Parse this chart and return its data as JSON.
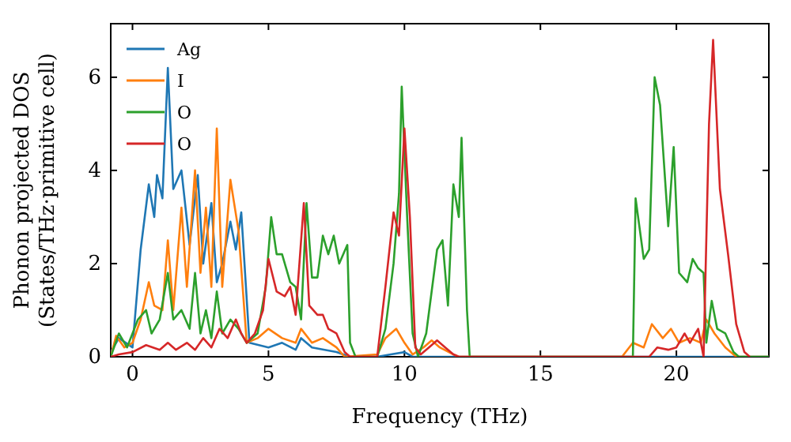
{
  "chart_data": {
    "type": "line",
    "xlabel": "Frequency (THz)",
    "ylabel": "Phonon projected DOS\n(States/THz·primitive cell)",
    "xlim": [
      -0.8,
      23.4
    ],
    "ylim": [
      0,
      7.15
    ],
    "xticks": [
      0,
      5,
      10,
      15,
      20
    ],
    "yticks": [
      0,
      2,
      4,
      6
    ],
    "grid": false,
    "legend": "top left",
    "marker": "none",
    "line_style": "solid",
    "series": [
      {
        "name": "Ag",
        "color": "#1f77b4",
        "x": [
          -0.8,
          -0.5,
          0,
          0.3,
          0.6,
          0.8,
          0.9,
          1.1,
          1.3,
          1.5,
          1.8,
          2.1,
          2.4,
          2.6,
          2.9,
          3.1,
          3.3,
          3.6,
          3.8,
          4.0,
          4.3,
          5,
          5.5,
          6,
          6.2,
          6.6,
          7.5,
          8,
          9,
          9.5,
          10,
          10.3,
          23.4
        ],
        "values": [
          0.1,
          0.4,
          0.2,
          2.3,
          3.7,
          3.0,
          3.9,
          3.4,
          6.2,
          3.6,
          4.0,
          2.4,
          3.9,
          2.0,
          3.3,
          1.6,
          2.0,
          2.9,
          2.3,
          3.1,
          0.3,
          0.2,
          0.3,
          0.15,
          0.4,
          0.2,
          0.1,
          0,
          0,
          0.05,
          0.1,
          0,
          0
        ]
      },
      {
        "name": "I",
        "color": "#ff7f0e",
        "x": [
          -0.8,
          -0.6,
          -0.3,
          0,
          0.3,
          0.6,
          0.8,
          1.1,
          1.3,
          1.5,
          1.8,
          2.0,
          2.3,
          2.5,
          2.7,
          2.9,
          3.1,
          3.3,
          3.6,
          3.9,
          4.2,
          4.6,
          5,
          5.5,
          6,
          6.2,
          6.6,
          7,
          7.5,
          7.8,
          9,
          9.3,
          9.7,
          10,
          10.3,
          10.7,
          11,
          11.3,
          11.8,
          12,
          18,
          18.4,
          18.8,
          19.1,
          19.5,
          19.8,
          20.1,
          20.5,
          20.9,
          21.1,
          21.4,
          21.8,
          22.2,
          23.4
        ],
        "values": [
          0,
          0.45,
          0.2,
          0.3,
          0.8,
          1.6,
          1.1,
          1.0,
          2.5,
          1.0,
          3.2,
          1.5,
          4.0,
          1.8,
          3.2,
          1.5,
          4.9,
          1.5,
          3.8,
          2.7,
          0.3,
          0.4,
          0.6,
          0.4,
          0.3,
          0.6,
          0.3,
          0.4,
          0.2,
          0,
          0.05,
          0.4,
          0.6,
          0.3,
          0.05,
          0.2,
          0.35,
          0.2,
          0.05,
          0,
          0,
          0.3,
          0.2,
          0.7,
          0.4,
          0.6,
          0.3,
          0.4,
          0.3,
          0.8,
          0.5,
          0.2,
          0,
          0
        ]
      },
      {
        "name": "O",
        "color": "#2ca02c",
        "x": [
          -0.8,
          -0.5,
          -0.2,
          0.2,
          0.5,
          0.7,
          1.0,
          1.3,
          1.5,
          1.8,
          2.1,
          2.3,
          2.5,
          2.7,
          2.9,
          3.1,
          3.3,
          3.6,
          3.9,
          4.2,
          4.6,
          4.9,
          5.1,
          5.3,
          5.5,
          5.8,
          6.0,
          6.2,
          6.4,
          6.6,
          6.8,
          7.0,
          7.2,
          7.4,
          7.6,
          7.9,
          8.0,
          8.2,
          9.0,
          9.3,
          9.6,
          9.8,
          9.9,
          10.1,
          10.3,
          10.5,
          10.8,
          11.2,
          11.4,
          11.6,
          11.8,
          12.0,
          12.1,
          12.3,
          12.4,
          18.4,
          18.5,
          18.8,
          19.0,
          19.2,
          19.4,
          19.7,
          19.9,
          20.1,
          20.4,
          20.6,
          20.8,
          21.0,
          21.1,
          21.3,
          21.5,
          21.8,
          22.1,
          22.3,
          23.4
        ],
        "values": [
          0,
          0.5,
          0.2,
          0.8,
          1.0,
          0.5,
          0.8,
          1.8,
          0.8,
          1.0,
          0.6,
          1.8,
          0.5,
          1.0,
          0.4,
          1.4,
          0.5,
          0.8,
          0.6,
          0.3,
          0.5,
          1.5,
          3.0,
          2.2,
          2.2,
          1.6,
          1.5,
          0.8,
          3.3,
          1.7,
          1.7,
          2.6,
          2.2,
          2.6,
          2.0,
          2.4,
          0.3,
          0,
          0,
          0.6,
          2.0,
          3.5,
          5.8,
          3.0,
          0.5,
          0,
          0.5,
          2.3,
          2.5,
          1.1,
          3.7,
          3.0,
          4.7,
          1.0,
          0,
          0,
          3.4,
          2.1,
          2.3,
          6.0,
          5.4,
          2.8,
          4.5,
          1.8,
          1.6,
          2.1,
          1.9,
          1.8,
          0.3,
          1.2,
          0.6,
          0.5,
          0.1,
          0,
          0
        ]
      },
      {
        "name": "O",
        "color": "#d62728",
        "x": [
          -0.8,
          -0.5,
          0,
          0.5,
          1,
          1.3,
          1.6,
          2.0,
          2.3,
          2.6,
          2.9,
          3.2,
          3.5,
          3.8,
          4.0,
          4.2,
          4.5,
          4.8,
          5.0,
          5.3,
          5.6,
          5.8,
          6.0,
          6.3,
          6.5,
          6.8,
          7.0,
          7.2,
          7.5,
          7.8,
          8.0,
          9.0,
          9.3,
          9.6,
          9.8,
          10.0,
          10.2,
          10.4,
          10.6,
          10.9,
          11.2,
          11.5,
          11.8,
          12.0,
          19.0,
          19.3,
          19.7,
          20.0,
          20.3,
          20.5,
          20.8,
          21.0,
          21.2,
          21.35,
          21.6,
          21.9,
          22.2,
          22.5,
          22.7
        ],
        "values": [
          0,
          0.05,
          0.1,
          0.25,
          0.15,
          0.3,
          0.15,
          0.3,
          0.15,
          0.4,
          0.2,
          0.6,
          0.4,
          0.8,
          0.5,
          0.3,
          0.5,
          1.0,
          2.1,
          1.4,
          1.3,
          1.5,
          0.9,
          3.3,
          1.1,
          0.9,
          0.9,
          0.6,
          0.5,
          0.1,
          0,
          0,
          1.5,
          3.1,
          2.6,
          4.9,
          3.0,
          0.2,
          0.05,
          0.2,
          0.35,
          0.2,
          0.05,
          0,
          0,
          0.2,
          0.15,
          0.2,
          0.5,
          0.3,
          0.6,
          0,
          5.0,
          6.8,
          3.6,
          2.2,
          0.7,
          0.1,
          0
        ]
      }
    ]
  }
}
